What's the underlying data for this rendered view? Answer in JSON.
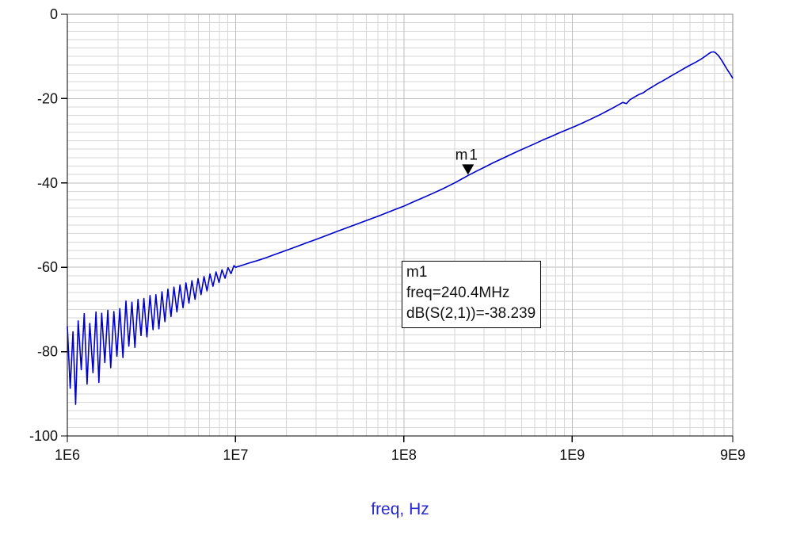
{
  "chart_data": {
    "type": "line",
    "title": "",
    "xlabel": "freq, Hz",
    "ylabel": "",
    "x_scale": "log",
    "xlim": [
      1000000.0,
      9000000000.0
    ],
    "ylim": [
      -100,
      0
    ],
    "grid": {
      "on": true,
      "y_minor_step": 2,
      "y_major_step": 20
    },
    "x_ticks": [
      1000000.0,
      10000000.0,
      100000000.0,
      1000000000.0,
      9000000000.0
    ],
    "x_tick_labels": [
      "1E6",
      "1E7",
      "1E8",
      "1E9",
      "9E9"
    ],
    "y_ticks": [
      0,
      -20,
      -40,
      -60,
      -80,
      -100
    ],
    "y_tick_labels": [
      "0",
      "-20",
      "-40",
      "-60",
      "-80",
      "-100"
    ],
    "colors": {
      "trace": "#0000cc",
      "grid_minor": "#d6d6d6",
      "grid_major": "#bdbdbd",
      "axis": "#000000",
      "xlabel": "#2929cc",
      "marker": "#000000"
    },
    "series": [
      {
        "name": "dB(S(2,1))",
        "points": [
          [
            1000000.0,
            -74.0
          ],
          [
            1040000.0,
            -88.7
          ],
          [
            1080000.0,
            -75.3
          ],
          [
            1120000.0,
            -92.5
          ],
          [
            1160000.0,
            -72.7
          ],
          [
            1210000.0,
            -84.3
          ],
          [
            1260000.0,
            -71.0
          ],
          [
            1310000.0,
            -87.7
          ],
          [
            1360000.0,
            -73.3
          ],
          [
            1420000.0,
            -85.0
          ],
          [
            1480000.0,
            -70.6
          ],
          [
            1540000.0,
            -87.3
          ],
          [
            1600000.0,
            -70.9
          ],
          [
            1670000.0,
            -82.6
          ],
          [
            1740000.0,
            -70.2
          ],
          [
            1810000.0,
            -83.8
          ],
          [
            1890000.0,
            -70.5
          ],
          [
            1970000.0,
            -81.1
          ],
          [
            2050000.0,
            -69.8
          ],
          [
            2140000.0,
            -81.4
          ],
          [
            2230000.0,
            -68.0
          ],
          [
            2320000.0,
            -78.7
          ],
          [
            2420000.0,
            -68.3
          ],
          [
            2520000.0,
            -79.0
          ],
          [
            2630000.0,
            -67.6
          ],
          [
            2740000.0,
            -76.2
          ],
          [
            2850000.0,
            -67.4
          ],
          [
            2970000.0,
            -76.5
          ],
          [
            3100000.0,
            -66.7
          ],
          [
            3230000.0,
            -74.8
          ],
          [
            3360000.0,
            -66.5
          ],
          [
            3500000.0,
            -74.6
          ],
          [
            3650000.0,
            -65.8
          ],
          [
            3800000.0,
            -72.9
          ],
          [
            3960000.0,
            -65.2
          ],
          [
            4130000.0,
            -71.7
          ],
          [
            4300000.0,
            -64.7
          ],
          [
            4480000.0,
            -70.6
          ],
          [
            4670000.0,
            -64.2
          ],
          [
            4870000.0,
            -69.6
          ],
          [
            5070000.0,
            -63.7
          ],
          [
            5280000.0,
            -68.5
          ],
          [
            5500000.0,
            -63.2
          ],
          [
            5740000.0,
            -67.6
          ],
          [
            5980000.0,
            -62.7
          ],
          [
            6230000.0,
            -66.5
          ],
          [
            6490000.0,
            -62.2
          ],
          [
            6760000.0,
            -65.6
          ],
          [
            7040000.0,
            -61.6
          ],
          [
            7340000.0,
            -64.5
          ],
          [
            7650000.0,
            -61.1
          ],
          [
            7970000.0,
            -63.6
          ],
          [
            8300000.0,
            -60.6
          ],
          [
            8650000.0,
            -62.6
          ],
          [
            9010000.0,
            -60.1
          ],
          [
            9390000.0,
            -61.5
          ],
          [
            9780000.0,
            -59.6
          ],
          [
            10000000.0,
            -60.0
          ],
          [
            11000000.0,
            -59.5
          ],
          [
            12000000.0,
            -59.0
          ],
          [
            13500000.0,
            -58.4
          ],
          [
            15000000.0,
            -57.8
          ],
          [
            17000000.0,
            -57.0
          ],
          [
            20000000.0,
            -56.0
          ],
          [
            23000000.0,
            -55.1
          ],
          [
            26000000.0,
            -54.3
          ],
          [
            30000000.0,
            -53.4
          ],
          [
            35000000.0,
            -52.4
          ],
          [
            40000000.0,
            -51.5
          ],
          [
            46000000.0,
            -50.6
          ],
          [
            53000000.0,
            -49.7
          ],
          [
            60000000.0,
            -48.9
          ],
          [
            70000000.0,
            -47.9
          ],
          [
            80000000.0,
            -47.0
          ],
          [
            90000000.0,
            -46.2
          ],
          [
            100000000.0,
            -45.5
          ],
          [
            115000000.0,
            -44.4
          ],
          [
            130000000.0,
            -43.5
          ],
          [
            150000000.0,
            -42.4
          ],
          [
            170000000.0,
            -41.4
          ],
          [
            200000000.0,
            -40.0
          ],
          [
            220000000.0,
            -39.1
          ],
          [
            240400000.0,
            -38.239
          ],
          [
            270000000.0,
            -37.2
          ],
          [
            300000000.0,
            -36.3
          ],
          [
            340000000.0,
            -35.2
          ],
          [
            380000000.0,
            -34.3
          ],
          [
            430000000.0,
            -33.3
          ],
          [
            480000000.0,
            -32.4
          ],
          [
            540000000.0,
            -31.5
          ],
          [
            600000000.0,
            -30.7
          ],
          [
            670000000.0,
            -29.8
          ],
          [
            750000000.0,
            -29.0
          ],
          [
            840000000.0,
            -28.1
          ],
          [
            940000000.0,
            -27.3
          ],
          [
            1050000000.0,
            -26.5
          ],
          [
            1150000000.0,
            -25.8
          ],
          [
            1300000000.0,
            -24.8
          ],
          [
            1450000000.0,
            -23.9
          ],
          [
            1600000000.0,
            -23.0
          ],
          [
            1750000000.0,
            -22.2
          ],
          [
            1900000000.0,
            -21.4
          ],
          [
            2000000000.0,
            -20.9
          ],
          [
            2100000000.0,
            -21.2
          ],
          [
            2200000000.0,
            -20.3
          ],
          [
            2350000000.0,
            -19.6
          ],
          [
            2500000000.0,
            -19.0
          ],
          [
            2650000000.0,
            -18.6
          ],
          [
            2800000000.0,
            -17.9
          ],
          [
            3000000000.0,
            -17.2
          ],
          [
            3200000000.0,
            -16.5
          ],
          [
            3450000000.0,
            -15.8
          ],
          [
            3700000000.0,
            -15.1
          ],
          [
            4000000000.0,
            -14.3
          ],
          [
            4300000000.0,
            -13.6
          ],
          [
            4600000000.0,
            -12.9
          ],
          [
            5000000000.0,
            -12.1
          ],
          [
            5400000000.0,
            -11.4
          ],
          [
            5800000000.0,
            -10.7
          ],
          [
            6200000000.0,
            -9.9
          ],
          [
            6500000000.0,
            -9.3
          ],
          [
            6700000000.0,
            -9.0
          ],
          [
            6900000000.0,
            -8.9
          ],
          [
            7100000000.0,
            -9.1
          ],
          [
            7400000000.0,
            -9.8
          ],
          [
            7700000000.0,
            -10.8
          ],
          [
            8000000000.0,
            -11.9
          ],
          [
            8400000000.0,
            -13.3
          ],
          [
            8700000000.0,
            -14.2
          ],
          [
            9000000000.0,
            -15.2
          ]
        ]
      }
    ],
    "marker": {
      "label": "m1",
      "freq": 240400000.0,
      "value": -38.239,
      "freq_text": "freq=240.4MHz",
      "value_text": "dB(S(2,1))=-38.239"
    },
    "legend": {
      "visible": false
    }
  }
}
